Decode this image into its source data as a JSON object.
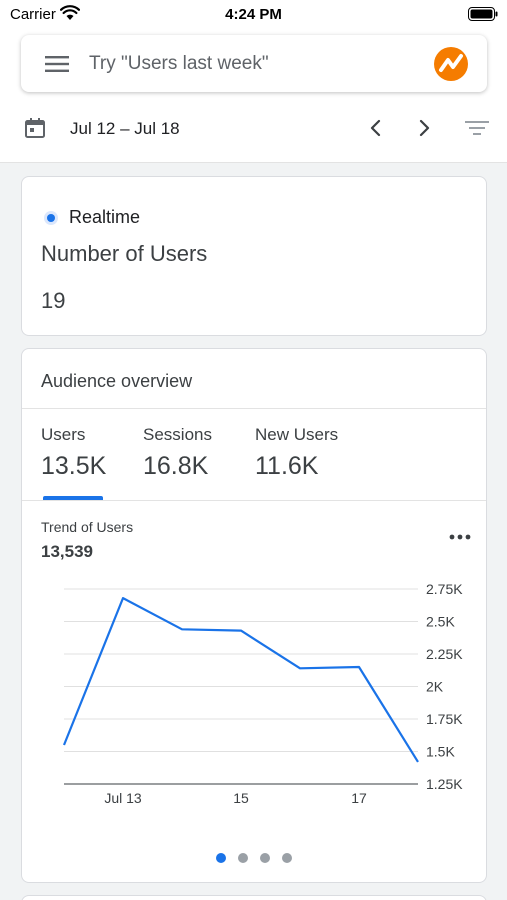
{
  "status_bar": {
    "carrier": "Carrier",
    "time": "4:24 PM"
  },
  "search": {
    "placeholder": "Try \"Users last week\""
  },
  "date_bar": {
    "range": "Jul 12 – Jul 18"
  },
  "realtime": {
    "label": "Realtime",
    "metric": "Number of Users",
    "value": "19"
  },
  "audience": {
    "title": "Audience overview",
    "tabs": [
      {
        "label": "Users",
        "value": "13.5K"
      },
      {
        "label": "Sessions",
        "value": "16.8K"
      },
      {
        "label": "New Users",
        "value": "11.6K"
      }
    ],
    "selected_tab": "Users",
    "trend_label": "Trend of Users",
    "trend_total": "13,539"
  },
  "pager": {
    "count": 4,
    "active": 0
  },
  "colors": {
    "accent": "#1a73e8",
    "logo_orange": "#f57c00"
  },
  "chart_data": {
    "type": "line",
    "title": "Trend of Users",
    "x": [
      "Jul 12",
      "Jul 13",
      "Jul 14",
      "Jul 15",
      "Jul 16",
      "Jul 17",
      "Jul 18"
    ],
    "series": [
      {
        "values": [
          1550,
          2680,
          2440,
          2430,
          2140,
          2150,
          1420
        ]
      }
    ],
    "x_tick_labels": [
      {
        "x": "Jul 13",
        "label": "Jul 13"
      },
      {
        "x": "Jul 15",
        "label": "15"
      },
      {
        "x": "Jul 17",
        "label": "17"
      }
    ],
    "y_ticks": [
      {
        "value": 1250,
        "label": "1.25K"
      },
      {
        "value": 1500,
        "label": "1.5K"
      },
      {
        "value": 1750,
        "label": "1.75K"
      },
      {
        "value": 2000,
        "label": "2K"
      },
      {
        "value": 2250,
        "label": "2.25K"
      },
      {
        "value": 2500,
        "label": "2.5K"
      },
      {
        "value": 2750,
        "label": "2.75K"
      }
    ],
    "ylim": [
      1250,
      2750
    ],
    "y_axis_side": "right",
    "grid": true,
    "line_color": "#1a73e8"
  }
}
